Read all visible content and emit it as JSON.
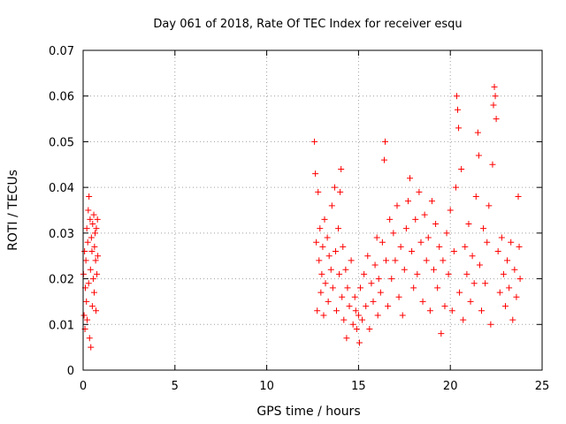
{
  "chart_data": {
    "type": "scatter",
    "title": "Day 061 of 2018, Rate Of TEC Index for receiver esqu",
    "xlabel": "GPS time / hours",
    "ylabel": "ROTI / TECUs",
    "xlim": [
      0,
      25
    ],
    "ylim": [
      0,
      0.07
    ],
    "xticks": [
      0,
      5,
      10,
      15,
      20,
      25
    ],
    "xtick_labels": [
      "0",
      "5",
      "10",
      "15",
      "20",
      "25"
    ],
    "yticks": [
      0,
      0.01,
      0.02,
      0.03,
      0.04,
      0.05,
      0.06,
      0.07
    ],
    "ytick_labels": [
      "0",
      "0.01",
      "0.02",
      "0.03",
      "0.04",
      "0.05",
      "0.06",
      "0.07"
    ],
    "grid": true,
    "marker": "+",
    "color": "#ff0000",
    "series": [
      {
        "name": "ROTI",
        "points": [
          [
            0.02,
            0.021
          ],
          [
            0.05,
            0.012
          ],
          [
            0.08,
            0.026
          ],
          [
            0.1,
            0.009
          ],
          [
            0.12,
            0.018
          ],
          [
            0.15,
            0.024
          ],
          [
            0.18,
            0.015
          ],
          [
            0.2,
            0.031
          ],
          [
            0.22,
            0.011
          ],
          [
            0.25,
            0.028
          ],
          [
            0.28,
            0.035
          ],
          [
            0.3,
            0.019
          ],
          [
            0.32,
            0.038
          ],
          [
            0.35,
            0.007
          ],
          [
            0.38,
            0.033
          ],
          [
            0.4,
            0.022
          ],
          [
            0.42,
            0.005
          ],
          [
            0.45,
            0.029
          ],
          [
            0.48,
            0.026
          ],
          [
            0.5,
            0.014
          ],
          [
            0.52,
            0.032
          ],
          [
            0.55,
            0.02
          ],
          [
            0.58,
            0.034
          ],
          [
            0.6,
            0.017
          ],
          [
            0.62,
            0.027
          ],
          [
            0.65,
            0.03
          ],
          [
            0.68,
            0.024
          ],
          [
            0.7,
            0.013
          ],
          [
            0.72,
            0.031
          ],
          [
            0.75,
            0.021
          ],
          [
            0.78,
            0.033
          ],
          [
            0.8,
            0.025
          ],
          [
            12.6,
            0.05
          ],
          [
            12.65,
            0.043
          ],
          [
            12.7,
            0.028
          ],
          [
            12.75,
            0.013
          ],
          [
            12.8,
            0.039
          ],
          [
            12.85,
            0.024
          ],
          [
            12.9,
            0.031
          ],
          [
            12.95,
            0.017
          ],
          [
            13.0,
            0.021
          ],
          [
            13.05,
            0.027
          ],
          [
            13.1,
            0.012
          ],
          [
            13.15,
            0.033
          ],
          [
            13.2,
            0.019
          ],
          [
            13.3,
            0.029
          ],
          [
            13.35,
            0.015
          ],
          [
            13.4,
            0.025
          ],
          [
            13.5,
            0.022
          ],
          [
            13.55,
            0.036
          ],
          [
            13.6,
            0.018
          ],
          [
            13.7,
            0.04
          ],
          [
            13.75,
            0.026
          ],
          [
            13.8,
            0.013
          ],
          [
            13.9,
            0.031
          ],
          [
            13.95,
            0.021
          ],
          [
            14.0,
            0.039
          ],
          [
            14.05,
            0.044
          ],
          [
            14.1,
            0.016
          ],
          [
            14.15,
            0.027
          ],
          [
            14.2,
            0.011
          ],
          [
            14.3,
            0.022
          ],
          [
            14.35,
            0.007
          ],
          [
            14.4,
            0.018
          ],
          [
            14.5,
            0.014
          ],
          [
            14.6,
            0.024
          ],
          [
            14.7,
            0.01
          ],
          [
            14.8,
            0.016
          ],
          [
            14.85,
            0.013
          ],
          [
            14.9,
            0.009
          ],
          [
            15.0,
            0.012
          ],
          [
            15.05,
            0.006
          ],
          [
            15.1,
            0.018
          ],
          [
            15.2,
            0.011
          ],
          [
            15.3,
            0.021
          ],
          [
            15.4,
            0.014
          ],
          [
            15.5,
            0.025
          ],
          [
            15.6,
            0.009
          ],
          [
            15.7,
            0.019
          ],
          [
            15.8,
            0.015
          ],
          [
            15.9,
            0.023
          ],
          [
            16.0,
            0.029
          ],
          [
            16.05,
            0.012
          ],
          [
            16.1,
            0.02
          ],
          [
            16.2,
            0.017
          ],
          [
            16.3,
            0.028
          ],
          [
            16.4,
            0.046
          ],
          [
            16.45,
            0.05
          ],
          [
            16.5,
            0.024
          ],
          [
            16.6,
            0.014
          ],
          [
            16.7,
            0.033
          ],
          [
            16.8,
            0.02
          ],
          [
            16.9,
            0.03
          ],
          [
            17.0,
            0.024
          ],
          [
            17.1,
            0.036
          ],
          [
            17.2,
            0.016
          ],
          [
            17.3,
            0.027
          ],
          [
            17.4,
            0.012
          ],
          [
            17.5,
            0.022
          ],
          [
            17.6,
            0.031
          ],
          [
            17.7,
            0.037
          ],
          [
            17.8,
            0.042
          ],
          [
            17.9,
            0.026
          ],
          [
            18.0,
            0.018
          ],
          [
            18.1,
            0.033
          ],
          [
            18.2,
            0.021
          ],
          [
            18.3,
            0.039
          ],
          [
            18.4,
            0.028
          ],
          [
            18.5,
            0.015
          ],
          [
            18.6,
            0.034
          ],
          [
            18.7,
            0.024
          ],
          [
            18.8,
            0.029
          ],
          [
            18.9,
            0.013
          ],
          [
            19.0,
            0.037
          ],
          [
            19.1,
            0.022
          ],
          [
            19.2,
            0.032
          ],
          [
            19.3,
            0.018
          ],
          [
            19.4,
            0.027
          ],
          [
            19.5,
            0.008
          ],
          [
            19.6,
            0.024
          ],
          [
            19.7,
            0.014
          ],
          [
            19.8,
            0.03
          ],
          [
            19.9,
            0.021
          ],
          [
            20.0,
            0.035
          ],
          [
            20.1,
            0.013
          ],
          [
            20.2,
            0.026
          ],
          [
            20.3,
            0.04
          ],
          [
            20.35,
            0.06
          ],
          [
            20.4,
            0.057
          ],
          [
            20.45,
            0.053
          ],
          [
            20.5,
            0.017
          ],
          [
            20.6,
            0.044
          ],
          [
            20.7,
            0.011
          ],
          [
            20.8,
            0.027
          ],
          [
            20.9,
            0.021
          ],
          [
            21.0,
            0.032
          ],
          [
            21.1,
            0.015
          ],
          [
            21.2,
            0.025
          ],
          [
            21.3,
            0.019
          ],
          [
            21.4,
            0.038
          ],
          [
            21.5,
            0.052
          ],
          [
            21.55,
            0.047
          ],
          [
            21.6,
            0.023
          ],
          [
            21.7,
            0.013
          ],
          [
            21.8,
            0.031
          ],
          [
            21.9,
            0.019
          ],
          [
            22.0,
            0.028
          ],
          [
            22.1,
            0.036
          ],
          [
            22.2,
            0.01
          ],
          [
            22.3,
            0.045
          ],
          [
            22.35,
            0.058
          ],
          [
            22.4,
            0.062
          ],
          [
            22.45,
            0.06
          ],
          [
            22.5,
            0.055
          ],
          [
            22.6,
            0.026
          ],
          [
            22.7,
            0.017
          ],
          [
            22.8,
            0.029
          ],
          [
            22.9,
            0.021
          ],
          [
            23.0,
            0.014
          ],
          [
            23.1,
            0.024
          ],
          [
            23.2,
            0.018
          ],
          [
            23.3,
            0.028
          ],
          [
            23.4,
            0.011
          ],
          [
            23.5,
            0.022
          ],
          [
            23.6,
            0.016
          ],
          [
            23.7,
            0.038
          ],
          [
            23.75,
            0.027
          ],
          [
            23.8,
            0.02
          ]
        ]
      }
    ]
  }
}
